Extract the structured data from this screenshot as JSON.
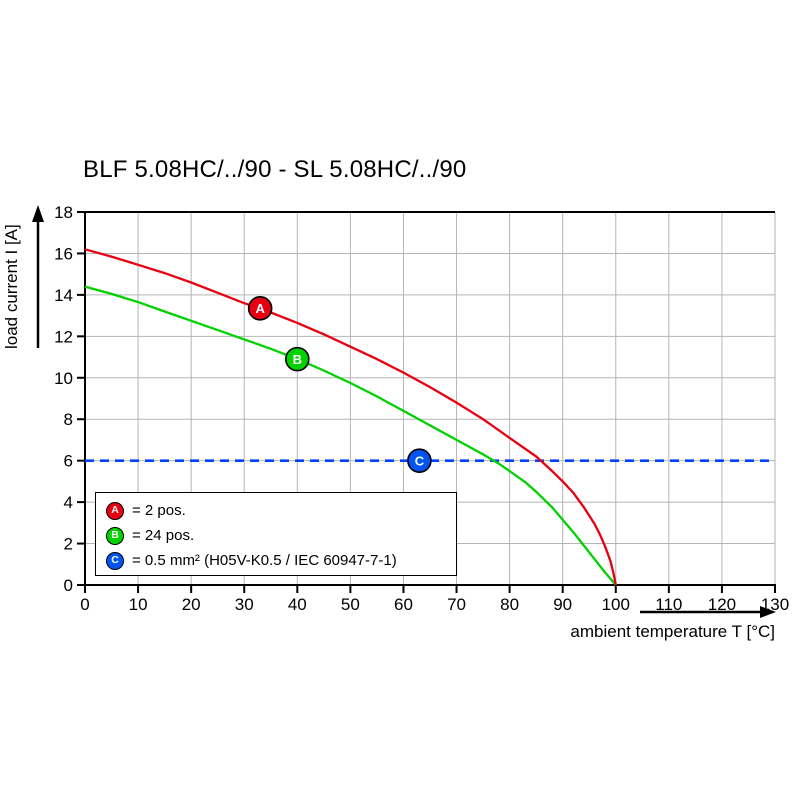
{
  "title": "BLF 5.08HC/../90 - SL 5.08HC/../90",
  "axes": {
    "y_label": "load current I [A]",
    "x_label": "ambient temperature T [°C]"
  },
  "colors": {
    "series_a_red": "#e60012",
    "series_b_green": "#00d200",
    "series_c_blue": "#0040ff",
    "marker_c_blue": "#0055f0",
    "grid": "#b5b5b5",
    "axis": "#000000"
  },
  "legend": {
    "items": [
      {
        "letter": "A",
        "color": "#e60012",
        "text": "= 2 pos."
      },
      {
        "letter": "B",
        "color": "#00d200",
        "text": "= 24 pos."
      },
      {
        "letter": "C",
        "color": "#0055f0",
        "text": "= 0.5 mm² (H05V-K0.5 / IEC 60947-7-1)"
      }
    ]
  },
  "chart_data": {
    "type": "line",
    "title": "BLF 5.08HC/../90 - SL 5.08HC/../90",
    "xlabel": "ambient temperature T [°C]",
    "ylabel": "load current I [A]",
    "xlim": [
      0,
      130
    ],
    "ylim": [
      0,
      18
    ],
    "x_ticks": [
      0,
      10,
      20,
      30,
      40,
      50,
      60,
      70,
      80,
      90,
      100,
      110,
      120,
      130
    ],
    "y_ticks": [
      0,
      2,
      4,
      6,
      8,
      10,
      12,
      14,
      16,
      18
    ],
    "grid": true,
    "legend_position": "lower-left inside plot",
    "series": [
      {
        "name": "A = 2 pos.",
        "color": "#e60012",
        "style": "solid",
        "points": [
          [
            0,
            16.2
          ],
          [
            5,
            15.85
          ],
          [
            10,
            15.45
          ],
          [
            15,
            15.05
          ],
          [
            20,
            14.6
          ],
          [
            25,
            14.1
          ],
          [
            30,
            13.6
          ],
          [
            33,
            13.35
          ],
          [
            35,
            13.15
          ],
          [
            40,
            12.65
          ],
          [
            45,
            12.1
          ],
          [
            50,
            11.5
          ],
          [
            55,
            10.9
          ],
          [
            60,
            10.25
          ],
          [
            65,
            9.55
          ],
          [
            70,
            8.8
          ],
          [
            75,
            8.0
          ],
          [
            80,
            7.1
          ],
          [
            85,
            6.2
          ],
          [
            88,
            5.5
          ],
          [
            90,
            5.0
          ],
          [
            92,
            4.45
          ],
          [
            94,
            3.75
          ],
          [
            96,
            2.95
          ],
          [
            97,
            2.45
          ],
          [
            98,
            1.85
          ],
          [
            99,
            1.15
          ],
          [
            99.6,
            0.55
          ],
          [
            100,
            0
          ]
        ]
      },
      {
        "name": "B = 24 pos.",
        "color": "#00d200",
        "style": "solid",
        "points": [
          [
            0,
            14.4
          ],
          [
            5,
            14.05
          ],
          [
            10,
            13.65
          ],
          [
            15,
            13.2
          ],
          [
            20,
            12.75
          ],
          [
            25,
            12.3
          ],
          [
            30,
            11.85
          ],
          [
            35,
            11.4
          ],
          [
            40,
            10.9
          ],
          [
            45,
            10.35
          ],
          [
            50,
            9.75
          ],
          [
            55,
            9.1
          ],
          [
            60,
            8.4
          ],
          [
            65,
            7.7
          ],
          [
            70,
            7.0
          ],
          [
            75,
            6.3
          ],
          [
            78,
            5.85
          ],
          [
            80,
            5.5
          ],
          [
            83,
            4.95
          ],
          [
            85,
            4.5
          ],
          [
            88,
            3.75
          ],
          [
            90,
            3.15
          ],
          [
            92,
            2.55
          ],
          [
            94,
            1.9
          ],
          [
            96,
            1.25
          ],
          [
            98,
            0.6
          ],
          [
            99,
            0.3
          ],
          [
            100,
            0
          ]
        ]
      },
      {
        "name": "C = 0.5 mm² (H05V-K0.5 / IEC 60947-7-1)",
        "color": "#0040ff",
        "style": "dashed",
        "points": [
          [
            0,
            6
          ],
          [
            130,
            6
          ]
        ]
      }
    ],
    "markers": [
      {
        "label": "A",
        "x": 33,
        "y": 13.35,
        "color": "#e60012"
      },
      {
        "label": "B",
        "x": 40,
        "y": 10.9,
        "color": "#00d200"
      },
      {
        "label": "C",
        "x": 63,
        "y": 6,
        "color": "#0055f0"
      }
    ]
  }
}
